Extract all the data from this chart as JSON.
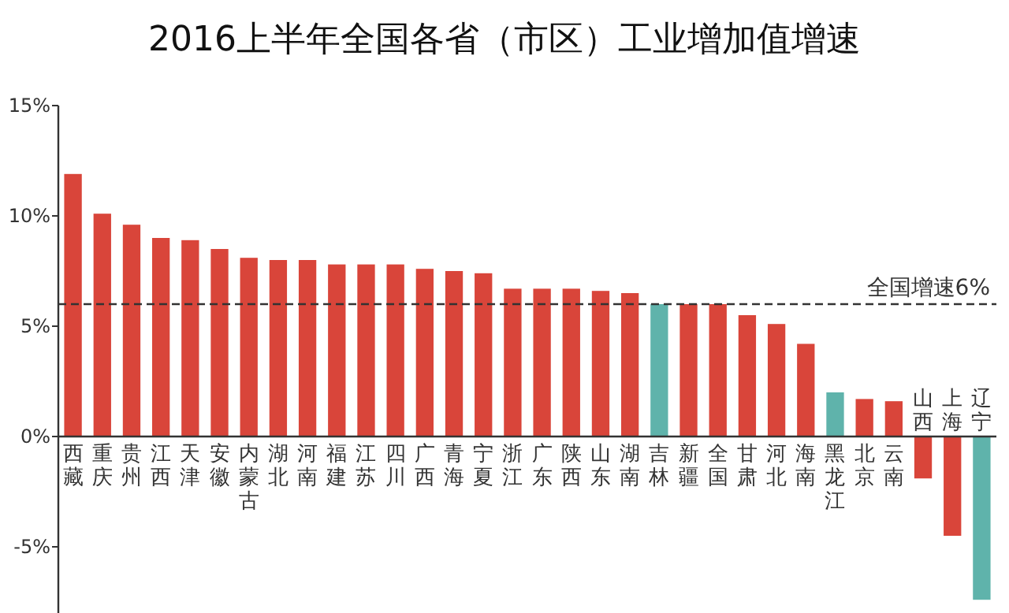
{
  "chart_data": {
    "type": "bar",
    "title": "2016上半年全国各省（市区）工业增加值增速",
    "categories": [
      "西藏",
      "重庆",
      "贵州",
      "江西",
      "天津",
      "安徽",
      "内蒙古",
      "湖北",
      "河南",
      "福建",
      "江苏",
      "四川",
      "广西",
      "青海",
      "宁夏",
      "浙江",
      "广东",
      "陕西",
      "山东",
      "湖南",
      "吉林",
      "新疆",
      "全国",
      "甘肃",
      "河北",
      "海南",
      "黑龙江",
      "北京",
      "云南",
      "山西",
      "上海",
      "辽宁"
    ],
    "values": [
      11.9,
      10.1,
      9.6,
      9.0,
      8.9,
      8.5,
      8.1,
      8.0,
      8.0,
      7.8,
      7.8,
      7.8,
      7.6,
      7.5,
      7.4,
      6.7,
      6.7,
      6.7,
      6.6,
      6.5,
      6.0,
      6.0,
      6.0,
      5.5,
      5.1,
      4.2,
      2.0,
      1.7,
      1.6,
      -1.9,
      -4.5,
      -7.4
    ],
    "colors": [
      "#d9453a",
      "#d9453a",
      "#d9453a",
      "#d9453a",
      "#d9453a",
      "#d9453a",
      "#d9453a",
      "#d9453a",
      "#d9453a",
      "#d9453a",
      "#d9453a",
      "#d9453a",
      "#d9453a",
      "#d9453a",
      "#d9453a",
      "#d9453a",
      "#d9453a",
      "#d9453a",
      "#d9453a",
      "#d9453a",
      "#5fb3ab",
      "#d9453a",
      "#d9453a",
      "#d9453a",
      "#d9453a",
      "#d9453a",
      "#5fb3ab",
      "#d9453a",
      "#d9453a",
      "#d9453a",
      "#d9453a",
      "#5fb3ab"
    ],
    "ylim": [
      -8,
      15
    ],
    "yticks": [
      {
        "value": 15,
        "label": "15%"
      },
      {
        "value": 10,
        "label": "10%"
      },
      {
        "value": 5,
        "label": "5%"
      },
      {
        "value": 0,
        "label": "0%"
      },
      {
        "value": -5,
        "label": "-5%"
      }
    ],
    "ref_lines": [
      {
        "axis": "y",
        "value": 6,
        "label": "全国增速6%",
        "color": "#333333",
        "line_style": "dashed"
      }
    ],
    "grid": false
  }
}
